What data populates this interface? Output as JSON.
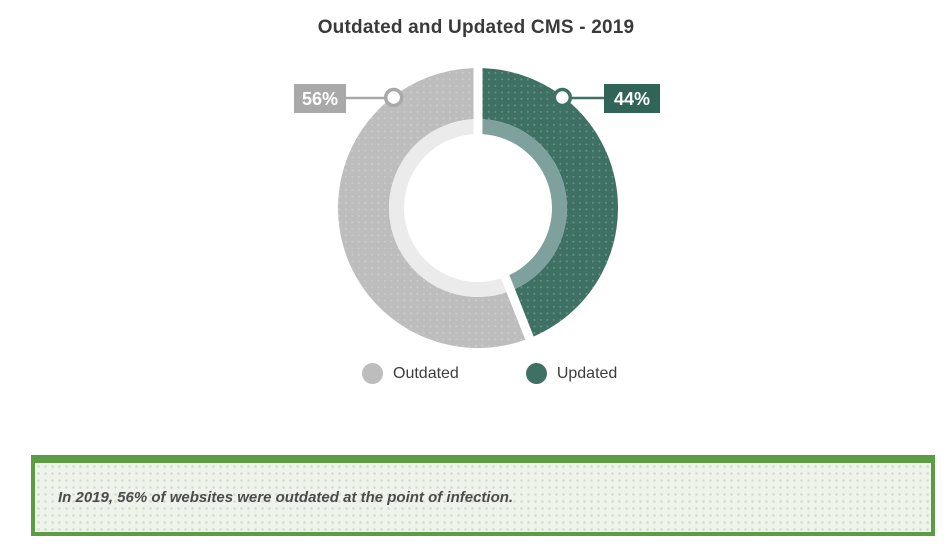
{
  "title": "Outdated and Updated CMS - 2019",
  "chart_data": {
    "type": "pie",
    "subtype": "donut",
    "title": "Outdated and Updated CMS - 2019",
    "start_angle_deg": 0,
    "direction": "clockwise",
    "slices": [
      {
        "name": "Updated",
        "value": 44,
        "label": "44%",
        "color": "#3e7164",
        "inner_band_color": "#7ea19e",
        "callout_bg": "#2f6457",
        "callout_side": "right"
      },
      {
        "name": "Outdated",
        "value": 56,
        "label": "56%",
        "color": "#bdbdbd",
        "inner_band_color": "#ebebeb",
        "callout_bg": "#a9a9a9",
        "callout_side": "left"
      }
    ],
    "legend": [
      {
        "label": "Outdated",
        "color": "#bdbdbd"
      },
      {
        "label": "Updated",
        "color": "#3e7164"
      }
    ],
    "legend_position": "bottom"
  },
  "note": {
    "text": "In 2019, 56% of websites were outdated at the point of infection.",
    "border_color": "#5c9c43",
    "background": "#eef3ec"
  }
}
